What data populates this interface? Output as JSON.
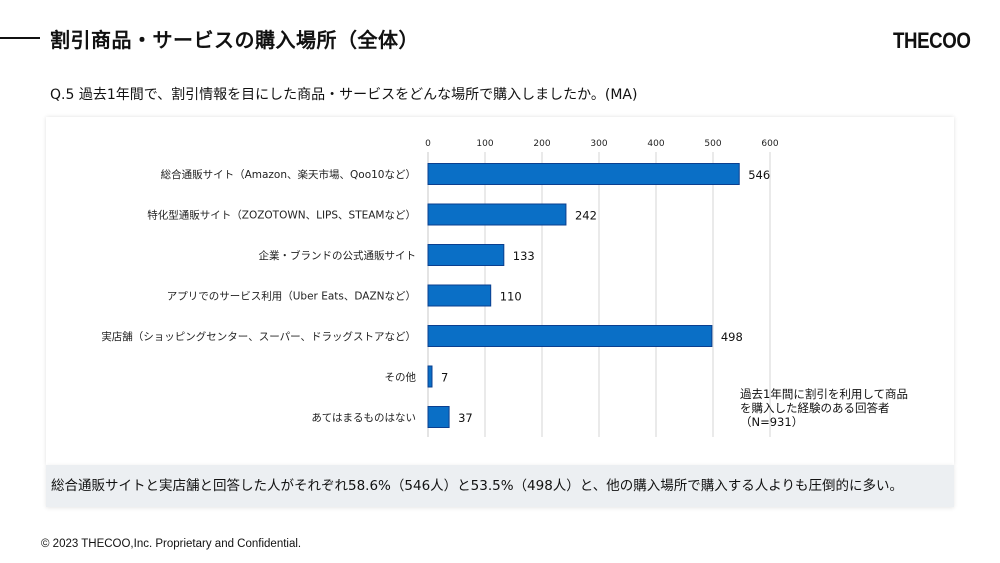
{
  "header": {
    "title": "割引商品・サービスの購入場所（全体）",
    "brand": "THECOO"
  },
  "question": "Q.5  過去1年間で、割引情報を目にした商品・サービスをどんな場所で購入しましたか。(MA)",
  "note": "過去1年間に割引を利用して商品\nを購入した経験のある回答者\n（N=931）",
  "summary": "総合通販サイトと実店舗と回答した人がそれぞれ58.6%（546人）と53.5%（498人）と、他の購入場所で購入する人よりも圧倒的に多い。",
  "footer": "© 2023 THECOO,Inc. Proprietary and Confidential.",
  "chart_data": {
    "type": "bar",
    "orientation": "horizontal",
    "title": "",
    "xlabel": "",
    "ylabel": "",
    "xlim": [
      0,
      600
    ],
    "ticks": [
      0,
      100,
      200,
      300,
      400,
      500,
      600
    ],
    "tick_labels": [
      "0",
      "100",
      "200",
      "300",
      "400",
      "500",
      "600"
    ],
    "grid": true,
    "axis_position": "top",
    "bar_color": "#0a6fc6",
    "bar_edge_color": "#0b3f8f",
    "categories": [
      "総合通販サイト（Amazon、楽天市場、Qoo10など）",
      "特化型通販サイト（ZOZOTOWN、LIPS、STEAMなど）",
      "企業・ブランドの公式通販サイト",
      "アプリでのサービス利用（Uber Eats、DAZNなど）",
      "実店舗（ショッピングセンター、スーパー、ドラッグストアなど）",
      "その他",
      "あてはまるものはない"
    ],
    "values": [
      546,
      242,
      133,
      110,
      498,
      7,
      37
    ],
    "data_labels": [
      "546",
      "242",
      "133",
      "110",
      "498",
      "7",
      "37"
    ]
  }
}
